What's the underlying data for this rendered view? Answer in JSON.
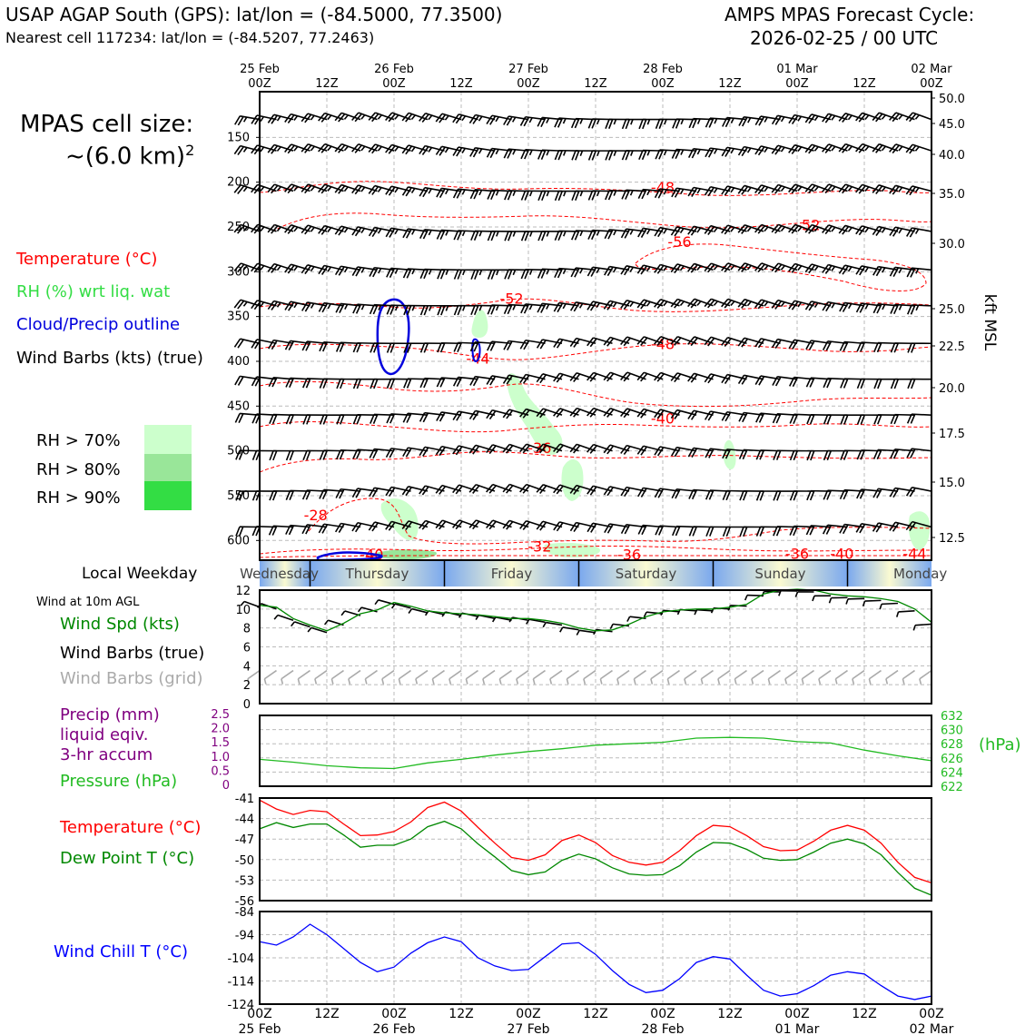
{
  "header": {
    "left_line1": "USAP AGAP South (GPS): lat/lon = (-84.5000, 77.3500)",
    "left_line2": "Nearest cell 117234: lat/lon = (-84.5207, 77.2463)",
    "right_line1": "AMPS MPAS Forecast Cycle:",
    "right_line2": "2026-02-25 / 00 UTC"
  },
  "cell_size": {
    "label": "MPAS cell size:",
    "value": "~(6.0 km)",
    "exponent": "2"
  },
  "legend_main": {
    "temperature": "Temperature (°C)",
    "rh": "RH (%) wrt liq. wat",
    "cloud": "Cloud/Precip outline",
    "wind": "Wind Barbs (kts) (true)"
  },
  "rh_legend": [
    {
      "label": "RH > 70%",
      "color": "#ccffcc"
    },
    {
      "label": "RH > 80%",
      "color": "#99e699"
    },
    {
      "label": "RH > 90%",
      "color": "#33dd44"
    }
  ],
  "time_axis": {
    "top_dates": [
      "25 Feb",
      "",
      "26 Feb",
      "",
      "27 Feb",
      "",
      "28 Feb",
      "",
      "01 Mar",
      "",
      "02 Mar"
    ],
    "hours": [
      "00Z",
      "12Z",
      "00Z",
      "12Z",
      "00Z",
      "12Z",
      "00Z",
      "12Z",
      "00Z",
      "12Z",
      "00Z"
    ],
    "bottom_dates": [
      "25 Feb",
      "",
      "26 Feb",
      "",
      "27 Feb",
      "",
      "28 Feb",
      "",
      "01 Mar",
      "",
      "02 Mar"
    ]
  },
  "colors": {
    "temperature": "#ff0000",
    "rh": "#33dd44",
    "cloud": "#0000dd",
    "wind_chill": "#0000ff",
    "dewpoint": "#008800",
    "precip": "#800080",
    "pressure": "#22bb22",
    "grid_barb": "#aaaaaa"
  },
  "chart_data": [
    {
      "type": "other",
      "name": "time-height cross section",
      "y_left_ticks": [
        "150",
        "200",
        "250",
        "300",
        "350",
        "400",
        "450",
        "500",
        "550",
        "600"
      ],
      "y_right_ticks": [
        "50.0",
        "45.0",
        "40.0",
        "35.0",
        "30.0",
        "25.0",
        "22.5",
        "20.0",
        "17.5",
        "15.0",
        "12.5"
      ],
      "y_right_label": "kft MSL",
      "temp_labels": [
        {
          "text": "-48",
          "t": 72,
          "p": 207
        },
        {
          "text": "-52",
          "t": 98,
          "p": 249
        },
        {
          "text": "-56",
          "t": 75,
          "p": 268
        },
        {
          "text": "-52",
          "t": 45,
          "p": 331
        },
        {
          "text": "-48",
          "t": 72,
          "p": 382
        },
        {
          "text": "-44",
          "t": 39,
          "p": 398
        },
        {
          "text": "-40",
          "t": 72,
          "p": 465
        },
        {
          "text": "-36",
          "t": 50,
          "p": 498
        },
        {
          "text": "-28",
          "t": 10,
          "p": 573
        },
        {
          "text": "-32",
          "t": 50,
          "p": 608
        },
        {
          "text": "-40",
          "t": 20,
          "p": 617
        },
        {
          "text": "-36",
          "t": 66,
          "p": 617
        },
        {
          "text": "-36",
          "t": 96,
          "p": 616
        },
        {
          "text": "-40",
          "t": 104,
          "p": 616
        },
        {
          "text": "-44",
          "t": 117,
          "p": 616
        }
      ]
    },
    {
      "type": "line",
      "name": "wind at 10m",
      "panel_title": "Wind at 10m AGL",
      "labels": {
        "speed": "Wind Spd (kts)",
        "barbs_true": "Wind Barbs (true)",
        "barbs_grid": "Wind Barbs (grid)"
      },
      "yticks": [
        "12",
        "10",
        "8",
        "6",
        "4",
        "2",
        "0"
      ],
      "ylim": [
        0,
        12
      ],
      "x_hours": [
        0,
        3,
        6,
        9,
        12,
        15,
        18,
        21,
        24,
        27,
        30,
        33,
        36,
        39,
        42,
        45,
        48,
        51,
        54,
        57,
        60,
        63,
        66,
        69,
        72,
        75,
        78,
        81,
        84,
        87,
        90,
        93,
        96,
        99,
        102,
        105,
        108,
        111,
        114,
        117,
        120
      ],
      "speed": [
        10.4,
        10.2,
        9.0,
        8.3,
        7.7,
        8.5,
        9.5,
        9.9,
        10.7,
        10.3,
        9.8,
        9.6,
        9.5,
        9.4,
        9.2,
        9.0,
        9.0,
        8.8,
        8.5,
        8.0,
        7.7,
        7.8,
        8.4,
        9.2,
        9.7,
        9.9,
        10.0,
        10.0,
        10.2,
        10.5,
        11.6,
        12.0,
        12.1,
        12.0,
        11.6,
        11.4,
        11.3,
        11.1,
        10.8,
        10.0,
        8.6
      ]
    },
    {
      "type": "line",
      "name": "precip and pressure",
      "labels": {
        "precip_1": "Precip (mm)",
        "precip_2": "liquid eqiv.",
        "precip_3": "3-hr accum",
        "pressure": "Pressure (hPa)"
      },
      "left_ticks": [
        "2.5",
        "2.0",
        "1.5",
        "1.0",
        "0.5",
        "0"
      ],
      "right_ticks": [
        "632",
        "630",
        "628",
        "626",
        "624",
        "622"
      ],
      "right_unit": "(hPa)",
      "ylim_pressure": [
        622,
        632
      ],
      "x_hours": [
        0,
        6,
        12,
        18,
        24,
        30,
        36,
        42,
        48,
        54,
        60,
        66,
        72,
        78,
        84,
        90,
        96,
        102,
        108,
        114,
        120
      ],
      "pressure": [
        625.8,
        625.4,
        624.9,
        624.6,
        624.5,
        625.3,
        625.8,
        626.4,
        626.9,
        627.3,
        627.8,
        628.0,
        628.2,
        628.8,
        628.9,
        628.8,
        628.3,
        628.1,
        627.1,
        626.3,
        625.6
      ]
    },
    {
      "type": "line",
      "name": "temperature and dewpoint",
      "labels": {
        "temperature": "Temperature (°C)",
        "dewpoint": "Dew Point T (°C)"
      },
      "yticks": [
        "-41",
        "-44",
        "-47",
        "-50",
        "-53",
        "-56"
      ],
      "ylim": [
        -56,
        -41
      ],
      "x_hours": [
        0,
        3,
        6,
        9,
        12,
        15,
        18,
        21,
        24,
        27,
        30,
        33,
        36,
        39,
        42,
        45,
        48,
        51,
        54,
        57,
        60,
        63,
        66,
        69,
        72,
        75,
        78,
        81,
        84,
        87,
        90,
        93,
        96,
        99,
        102,
        105,
        108,
        111,
        114,
        117,
        120
      ],
      "temperature": [
        -41.3,
        -42.6,
        -43.4,
        -42.8,
        -43.0,
        -44.8,
        -46.5,
        -46.4,
        -45.9,
        -44.5,
        -42.4,
        -41.6,
        -42.9,
        -45.3,
        -47.6,
        -49.7,
        -50.1,
        -49.3,
        -47.2,
        -46.4,
        -47.5,
        -49.4,
        -50.4,
        -50.8,
        -50.4,
        -48.7,
        -46.5,
        -45.0,
        -45.2,
        -46.5,
        -48.1,
        -48.7,
        -48.6,
        -47.3,
        -45.7,
        -45.0,
        -45.7,
        -47.6,
        -50.4,
        -52.6,
        -53.4
      ],
      "dewpoint": [
        -45.5,
        -44.6,
        -45.3,
        -44.8,
        -44.8,
        -46.4,
        -48.2,
        -47.9,
        -47.9,
        -47.0,
        -45.2,
        -44.4,
        -45.5,
        -47.7,
        -49.6,
        -51.6,
        -52.2,
        -51.8,
        -50.1,
        -49.2,
        -49.9,
        -51.2,
        -52.1,
        -52.3,
        -52.2,
        -50.9,
        -48.9,
        -47.5,
        -47.6,
        -48.5,
        -49.8,
        -50.1,
        -50.0,
        -48.9,
        -47.6,
        -47.0,
        -47.7,
        -49.3,
        -51.9,
        -54.2,
        -55.2
      ]
    },
    {
      "type": "line",
      "name": "wind chill",
      "labels": {
        "wind_chill": "Wind Chill T (°C)"
      },
      "yticks": [
        "-84",
        "-94",
        "-104",
        "-114",
        "-124"
      ],
      "ylim": [
        -124,
        -84
      ],
      "x_hours": [
        0,
        3,
        6,
        9,
        12,
        15,
        18,
        21,
        24,
        27,
        30,
        33,
        36,
        39,
        42,
        45,
        48,
        51,
        54,
        57,
        60,
        63,
        66,
        69,
        72,
        75,
        78,
        81,
        84,
        87,
        90,
        93,
        96,
        99,
        102,
        105,
        108,
        111,
        114,
        117,
        120
      ],
      "wind_chill": [
        -97,
        -98.5,
        -95,
        -89.5,
        -94,
        -100,
        -106,
        -110,
        -108,
        -102,
        -97.5,
        -95,
        -97,
        -104,
        -107.5,
        -109.5,
        -109,
        -103.5,
        -98,
        -97.5,
        -102.5,
        -109.5,
        -115.5,
        -119,
        -118,
        -113,
        -106,
        -103.5,
        -104.5,
        -111.5,
        -118,
        -120.5,
        -119.5,
        -116,
        -111.5,
        -110,
        -111,
        -116,
        -120.5,
        -122,
        -120.5
      ]
    }
  ],
  "weekday_strip": {
    "label": "Local Weekday",
    "days": [
      "Wednesday",
      "Thursday",
      "Friday",
      "Saturday",
      "Sunday",
      "Monday"
    ]
  }
}
